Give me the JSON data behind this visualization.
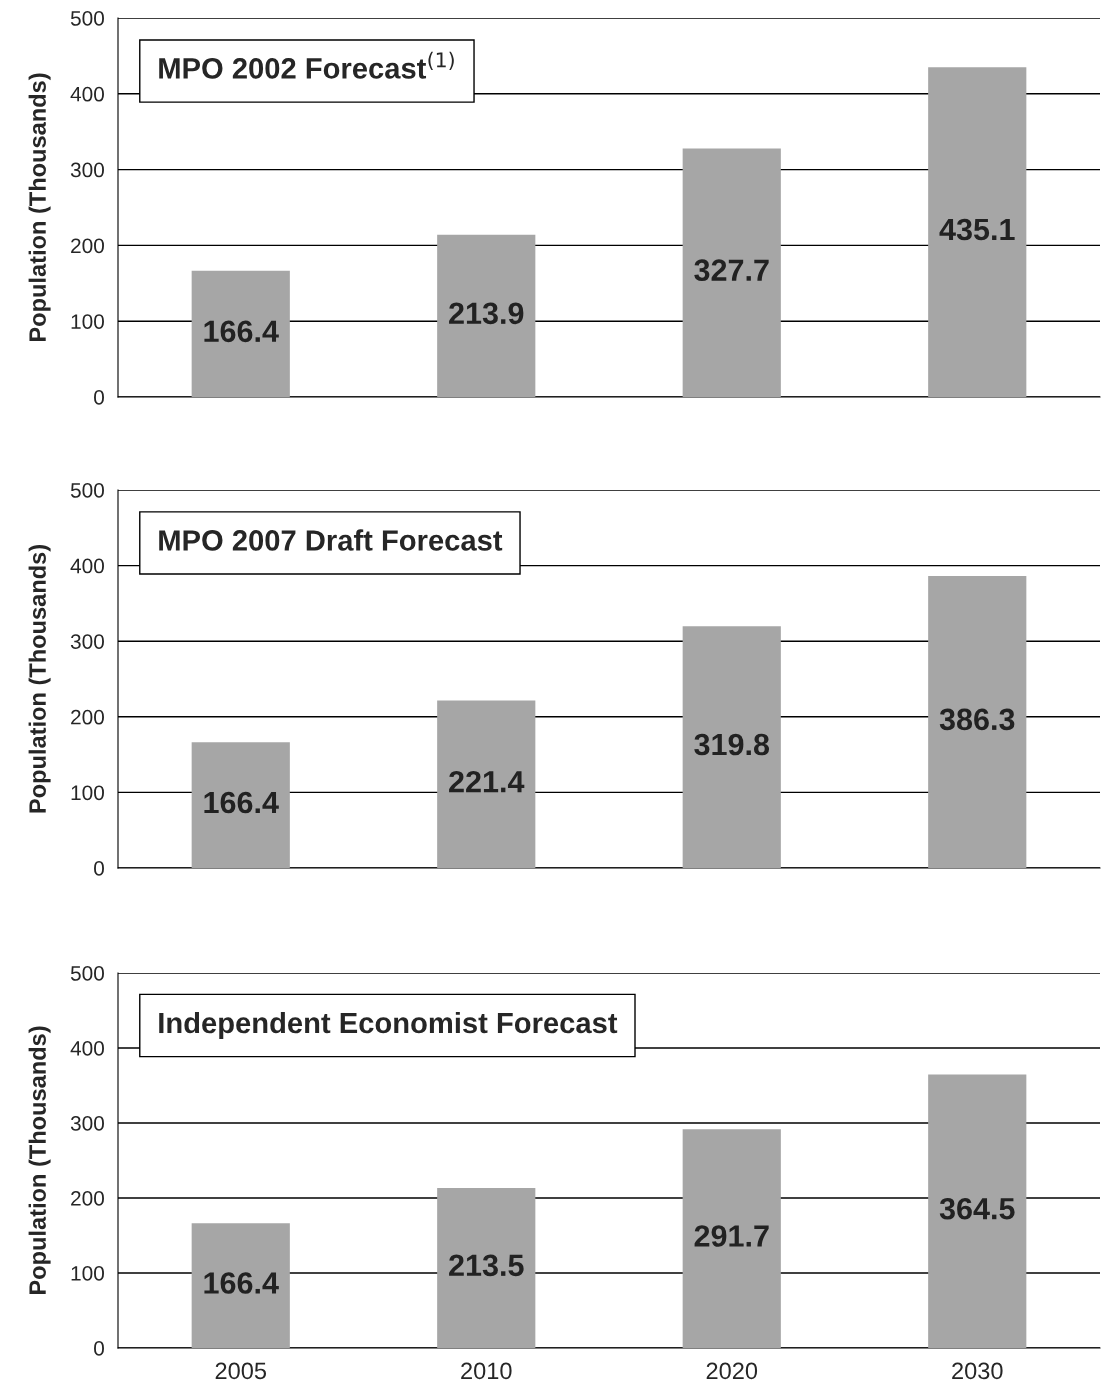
{
  "chart_data": [
    {
      "type": "bar",
      "title": "MPO 2002 Forecast$^{(1)}$",
      "ylabel": "Population (Thousands)",
      "categories": [
        "2005",
        "2010",
        "2020",
        "2030"
      ],
      "values": [
        166.4,
        213.9,
        327.7,
        435.1
      ],
      "color": "#a6a6a6",
      "ylim": [
        0,
        500
      ],
      "yticks": [
        0,
        100,
        200,
        300,
        400,
        500
      ],
      "grid": "y",
      "data_labels": true,
      "tick_labels": "y"
    },
    {
      "type": "bar",
      "title": "MPO 2007 Draft Forecast",
      "ylabel": "Population (Thousands)",
      "categories": [
        "2005",
        "2010",
        "2020",
        "2030"
      ],
      "values": [
        166.4,
        221.4,
        319.8,
        386.3
      ],
      "color": "#a6a6a6",
      "ylim": [
        0,
        500
      ],
      "yticks": [
        0,
        100,
        200,
        300,
        400,
        500
      ],
      "grid": "y",
      "data_labels": true,
      "tick_labels": "y"
    },
    {
      "type": "bar",
      "title": "Independent Economist Forecast",
      "ylabel": "Population (Thousands)",
      "categories": [
        "2005",
        "2010",
        "2020",
        "2030"
      ],
      "values": [
        166.4,
        213.5,
        291.7,
        364.5
      ],
      "color": "#a6a6a6",
      "ylim": [
        0,
        500
      ],
      "yticks": [
        0,
        100,
        200,
        300,
        400,
        500
      ],
      "grid": "y",
      "data_labels": true
    }
  ]
}
